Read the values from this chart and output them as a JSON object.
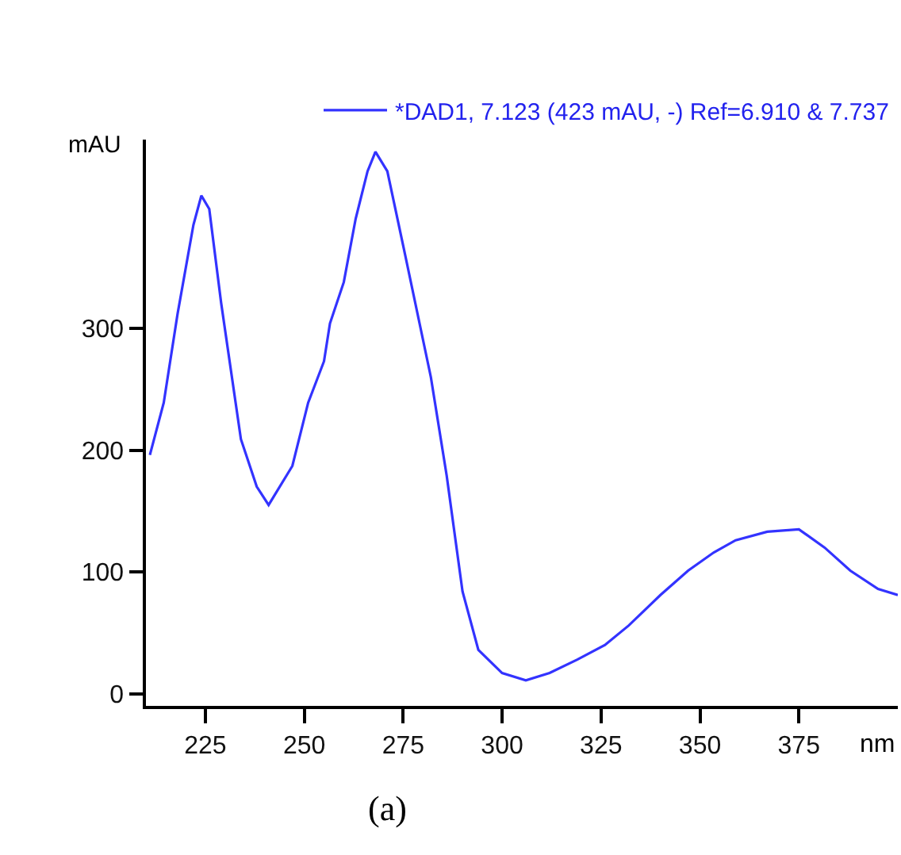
{
  "chart_data": {
    "type": "line",
    "xlabel": "nm",
    "ylabel": "mAU",
    "annotations": [
      "(a)"
    ],
    "legend": "top right",
    "grid": false,
    "marker": "none",
    "line_style": "solid",
    "series": [
      {
        "name": "*DAD1, 7.123 (423 mAU, -) Ref=6.910 & 7.737",
        "color": "#3333ff",
        "x": [
          211,
          214.5,
          218,
          222,
          224,
          226,
          229,
          234,
          238,
          241,
          247,
          251,
          255,
          256.5,
          260,
          263,
          266,
          268,
          271,
          275,
          282,
          286,
          290,
          294,
          300,
          306,
          312,
          319,
          326,
          332,
          340,
          347,
          353.5,
          359,
          367,
          375,
          381.5,
          388,
          395,
          400
        ],
        "values": [
          196,
          239,
          312,
          385,
          409,
          398,
          321,
          209,
          170,
          155,
          187,
          239,
          273,
          304,
          338,
          390,
          429,
          445,
          429,
          368,
          260,
          179,
          84,
          36,
          17,
          11,
          17,
          28,
          40,
          56,
          81,
          101,
          116,
          126,
          133,
          135,
          120,
          101,
          86,
          81
        ]
      }
    ],
    "xlim": [
      210,
      400
    ],
    "ylim": [
      -10,
      455
    ],
    "xticks": [
      225,
      250,
      275,
      300,
      325,
      350,
      375
    ],
    "yticks": [
      0,
      100,
      200,
      300
    ]
  }
}
